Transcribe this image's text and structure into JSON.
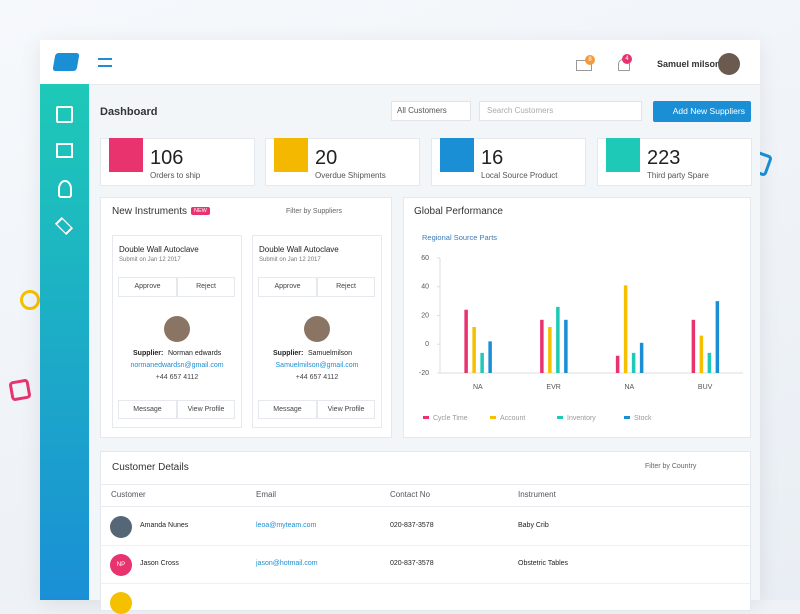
{
  "header": {
    "user": "Samuel milson",
    "mail_count": 8,
    "notif_count": 4
  },
  "dashboard": {
    "title": "Dashboard",
    "filter": "All Customers",
    "search": "Search Customers",
    "button": "Add New Suppliers"
  },
  "stats": [
    {
      "value": 106,
      "label": "Orders to ship",
      "color": "#e8336f"
    },
    {
      "value": 20,
      "label": "Overdue Shipments",
      "color": "#f5b800"
    },
    {
      "value": 16,
      "label": "Local Source Product",
      "color": "#1a8fd6"
    },
    {
      "value": 223,
      "label": "Third party Spare",
      "color": "#1ec9b7"
    }
  ],
  "instruments": {
    "title": "New Instruments",
    "badge": "NEW",
    "filter": "Filter by Suppliers",
    "cards": [
      {
        "name": "Double Wall Autoclave",
        "date": "Submit on Jan 12 2017",
        "approve": "Approve",
        "reject": "Reject",
        "supplier_label": "Supplier:",
        "supplier": "Norman edwards",
        "email": "normanedwardsn@gmail.com",
        "phone": "+44 657 4112",
        "message": "Message",
        "profile": "View Profile"
      },
      {
        "name": "Double Wall Autoclave",
        "date": "Submit on Jan 12 2017",
        "approve": "Approve",
        "reject": "Reject",
        "supplier_label": "Supplier:",
        "supplier": "Samuelmilson",
        "email": "Samuelmilson@gmail.com",
        "phone": "+44 657 4112",
        "message": "Message",
        "profile": "View Profile"
      }
    ]
  },
  "performance": {
    "title": "Global Performance"
  },
  "chart_data": {
    "type": "bar",
    "title": "Regional Source Parts",
    "categories": [
      "NA",
      "EVR",
      "NA",
      "BUV"
    ],
    "series": [
      {
        "name": "Cycle Time",
        "color": "#e8336f",
        "values": [
          24,
          17,
          -8,
          17
        ]
      },
      {
        "name": "Account",
        "color": "#f5c000",
        "values": [
          12,
          12,
          41,
          6
        ]
      },
      {
        "name": "Inventory",
        "color": "#1ec9b7",
        "values": [
          -6,
          26,
          -6,
          -6
        ]
      },
      {
        "name": "Stock",
        "color": "#1a8fd6",
        "values": [
          2,
          17,
          1,
          30
        ]
      }
    ],
    "ylim": [
      -20,
      60
    ],
    "yticks": [
      -20,
      0,
      20,
      40,
      60
    ]
  },
  "customers": {
    "title": "Customer Details",
    "filter": "Filter by Country",
    "columns": [
      "Customer",
      "Email",
      "Contact No",
      "Instrument"
    ],
    "rows": [
      {
        "name": "Amanda Nunes",
        "email": "leoa@myteam.com",
        "phone": "020-837-3578",
        "instrument": "Baby Crib"
      },
      {
        "initials": "NP",
        "name": "Jason Cross",
        "email": "jason@hotmail.com",
        "phone": "020-837-3578",
        "instrument": "Obstetric Tables"
      }
    ]
  }
}
